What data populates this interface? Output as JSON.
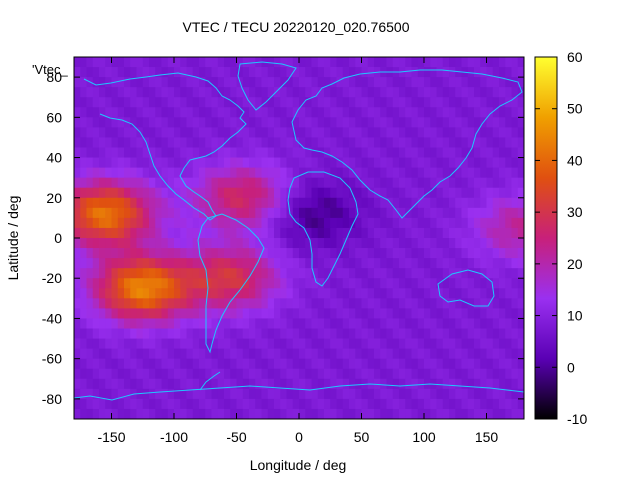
{
  "chart_data": {
    "type": "heatmap",
    "title": "VTEC / TECU 20220120_020.76500",
    "xlabel": "Longitude / deg",
    "ylabel": "Latitude / deg",
    "xlim": [
      -180,
      180
    ],
    "ylim": [
      -90,
      90
    ],
    "xticks": [
      -150,
      -100,
      -50,
      0,
      50,
      100,
      150
    ],
    "yticks": [
      -80,
      -60,
      -40,
      -20,
      0,
      20,
      40,
      60,
      80
    ],
    "legend_entry": "'Vtec_",
    "colorbar": {
      "range": [
        -10,
        60
      ],
      "ticks": [
        -10,
        0,
        10,
        20,
        30,
        40,
        50,
        60
      ],
      "colormap": "gnuplot-pm3d-rgbformulae-7-5-15",
      "colors": [
        "#000000",
        "#5a00b4",
        "#9a30f0",
        "#c8207a",
        "#e05010",
        "#f0a000",
        "#ffff30"
      ]
    },
    "background_level_tecu": 8,
    "features": [
      {
        "name": "equatorial anomaly Pacific north crest",
        "lon": -155,
        "lat": 12,
        "value": 42
      },
      {
        "name": "equatorial anomaly Pacific south crest",
        "lon": -125,
        "lat": -25,
        "value": 44
      },
      {
        "name": "South America / South Atlantic enhancement",
        "lon": -55,
        "lat": -20,
        "value": 30
      },
      {
        "name": "Caribbean tongue",
        "lon": -45,
        "lat": 20,
        "value": 28
      },
      {
        "name": "West Africa depletion",
        "lon": 10,
        "lat": 12,
        "value": -2
      },
      {
        "name": "dateline eastern edge enhancement",
        "lon": 178,
        "lat": 5,
        "value": 22
      }
    ]
  }
}
